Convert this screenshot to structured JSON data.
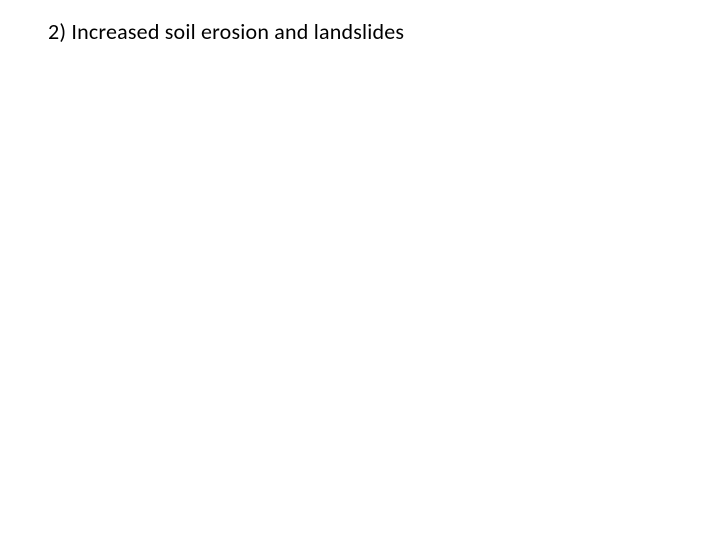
{
  "slide": {
    "heading": "2) Increased soil erosion and landslides",
    "background_color": "#ffffff",
    "text_color": "#000000",
    "font_size": 22,
    "font_family": "Calibri"
  }
}
